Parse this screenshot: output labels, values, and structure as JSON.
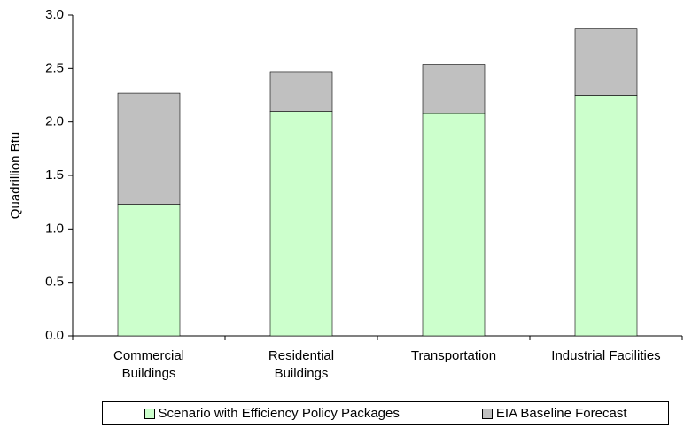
{
  "chart_data": {
    "type": "stacked_bar",
    "categories": [
      "Commercial\nBuildings",
      "Residential\nBuildings",
      "Transportation",
      "Industrial Facilities"
    ],
    "series": [
      {
        "name": "Scenario with Efficiency Policy Packages",
        "color": "#ccffcc",
        "values": [
          1.23,
          2.1,
          2.08,
          2.25
        ]
      },
      {
        "name": "EIA Baseline Forecast",
        "color": "#c0c0c0",
        "values": [
          1.04,
          0.37,
          0.46,
          0.62
        ]
      }
    ],
    "y_label": "Quadrillion Btu",
    "ylim": [
      0,
      3
    ],
    "yticks": [
      {
        "value": 0,
        "label": "0.0"
      },
      {
        "value": 0.5,
        "label": "0.5"
      },
      {
        "value": 1,
        "label": "1.0"
      },
      {
        "value": 1.5,
        "label": "1.5"
      },
      {
        "value": 2,
        "label": "2.0"
      },
      {
        "value": 2.5,
        "label": "2.5"
      },
      {
        "value": 3,
        "label": "3.0"
      }
    ]
  }
}
